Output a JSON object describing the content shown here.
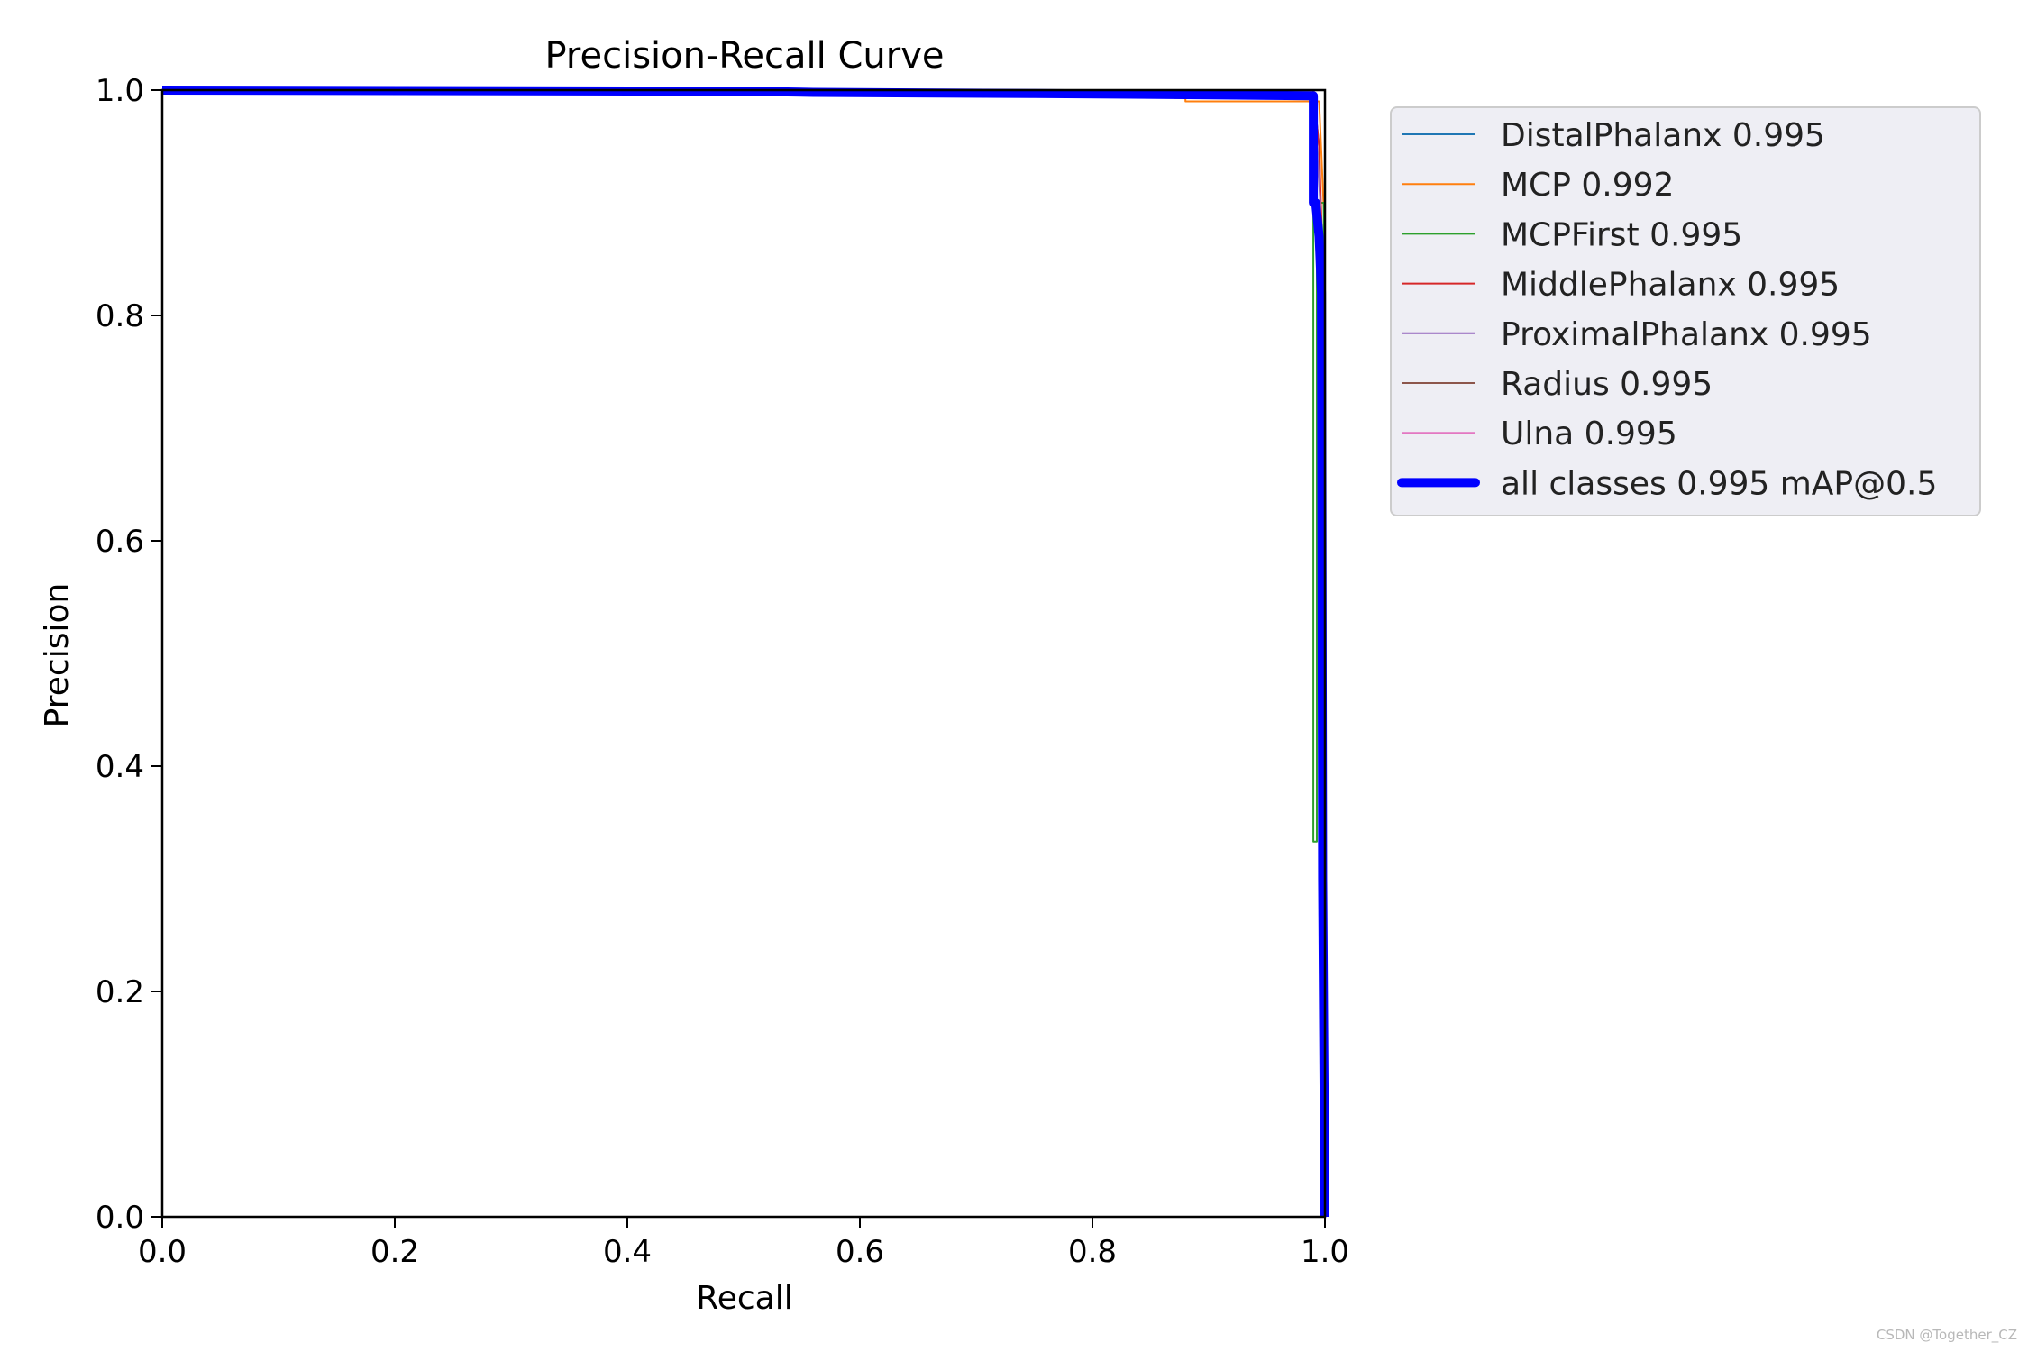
{
  "watermark": "CSDN @Together_CZ",
  "chart_data": {
    "type": "line",
    "title": "Precision-Recall Curve",
    "xlabel": "Recall",
    "ylabel": "Precision",
    "xlim": [
      0,
      1
    ],
    "ylim": [
      0,
      1
    ],
    "xticks": [
      "0.0",
      "0.2",
      "0.4",
      "0.6",
      "0.8",
      "1.0"
    ],
    "yticks": [
      "0.0",
      "0.2",
      "0.4",
      "0.6",
      "0.8",
      "1.0"
    ],
    "grid": false,
    "legend_position": "outside-top-right",
    "series": [
      {
        "name": "DistalPhalanx 0.995",
        "color": "#1f77b4",
        "width": 1,
        "x": [
          0,
          0.5,
          0.99,
          0.995,
          0.997,
          1.0,
          1.0
        ],
        "y": [
          1.0,
          1.0,
          1.0,
          0.95,
          0.85,
          0.4,
          0.0
        ]
      },
      {
        "name": "MCP 0.992",
        "color": "#ff7f0e",
        "width": 1,
        "x": [
          0,
          0.56,
          0.56,
          0.75,
          0.75,
          0.87,
          0.87,
          0.88,
          0.88,
          0.99,
          0.995,
          1.0,
          1.0
        ],
        "y": [
          1.0,
          1.0,
          0.998,
          0.998,
          0.995,
          0.995,
          0.993,
          0.993,
          0.99,
          0.99,
          0.99,
          0.87,
          0.0
        ]
      },
      {
        "name": "MCPFirst 0.995",
        "color": "#2ca02c",
        "width": 1,
        "x": [
          0,
          0.99,
          0.99,
          0.993,
          0.993,
          0.999,
          0.999,
          1.0
        ],
        "y": [
          1.0,
          1.0,
          0.333,
          0.333,
          0.9,
          0.9,
          0.0,
          0.0
        ]
      },
      {
        "name": "MiddlePhalanx 0.995",
        "color": "#d62728",
        "width": 1,
        "x": [
          0,
          0.99,
          0.995,
          0.998,
          1.0,
          1.0
        ],
        "y": [
          1.0,
          1.0,
          0.95,
          0.85,
          0.5,
          0.0
        ]
      },
      {
        "name": "ProximalPhalanx 0.995",
        "color": "#9467bd",
        "width": 1,
        "x": [
          0,
          0.99,
          0.996,
          0.999,
          1.0
        ],
        "y": [
          1.0,
          1.0,
          0.9,
          0.6,
          0.0
        ]
      },
      {
        "name": "Radius 0.995",
        "color": "#8c564b",
        "width": 1,
        "x": [
          0,
          0.999,
          1.0,
          1.0
        ],
        "y": [
          1.0,
          1.0,
          1.0,
          0.0
        ]
      },
      {
        "name": "Ulna 0.995",
        "color": "#e377c2",
        "width": 1,
        "x": [
          0,
          0.999,
          1.0,
          1.0
        ],
        "y": [
          1.0,
          1.0,
          1.0,
          0.0
        ]
      },
      {
        "name": "all classes 0.995 mAP@0.5",
        "color": "#0000ff",
        "width": 5,
        "x": [
          0,
          0.5,
          0.56,
          0.75,
          0.88,
          0.99,
          0.99,
          0.992,
          0.995,
          0.997,
          0.998,
          1.0
        ],
        "y": [
          1.0,
          0.999,
          0.998,
          0.997,
          0.996,
          0.995,
          0.9,
          0.9,
          0.87,
          0.82,
          0.3,
          0.0
        ]
      }
    ]
  }
}
